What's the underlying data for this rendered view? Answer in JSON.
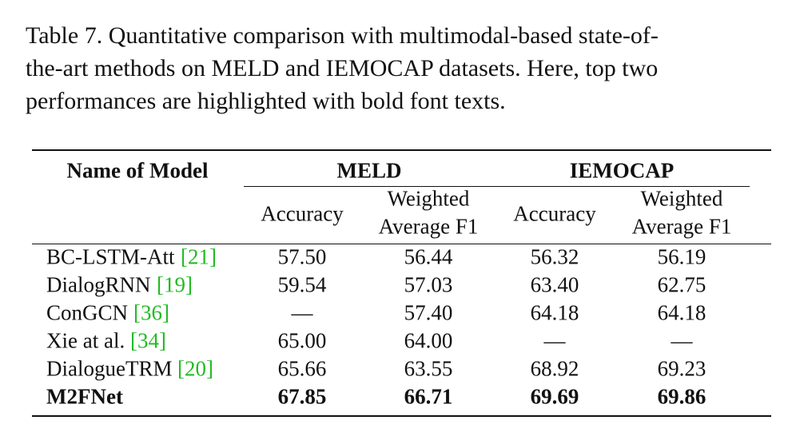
{
  "caption": {
    "lines": [
      "Table 7. Quantitative comparison with multimodal-based state-of-",
      "the-art methods on MELD and IEMOCAP datasets. Here, top two",
      "performances are highlighted with bold font texts."
    ]
  },
  "table": {
    "header": {
      "name": "Name of Model",
      "groups": [
        "MELD",
        "IEMOCAP"
      ],
      "columns": [
        [
          "Accuracy"
        ],
        [
          "Weighted",
          "Average F1"
        ],
        [
          "Accuracy"
        ],
        [
          "Weighted",
          "Average F1"
        ]
      ]
    },
    "rows": [
      {
        "name": "BC-LSTM-Att",
        "citation": "[21]",
        "values": [
          "57.50",
          "56.44",
          "56.32",
          "56.19"
        ]
      },
      {
        "name": "DialogRNN",
        "citation": "[19]",
        "values": [
          "59.54",
          "57.03",
          "63.40",
          "62.75"
        ]
      },
      {
        "name": "ConGCN",
        "citation": "[36]",
        "values": [
          "—",
          "57.40",
          "64.18",
          "64.18"
        ]
      },
      {
        "name": "Xie at al.",
        "citation": "[34]",
        "values": [
          "65.00",
          "64.00",
          "—",
          "—"
        ]
      },
      {
        "name": "DialogueTRM",
        "citation": "[20]",
        "values": [
          "65.66",
          "63.55",
          "68.92",
          "69.23"
        ]
      },
      {
        "name": "M2FNet",
        "values": [
          "67.85",
          "66.71",
          "69.69",
          "69.86"
        ]
      }
    ]
  }
}
